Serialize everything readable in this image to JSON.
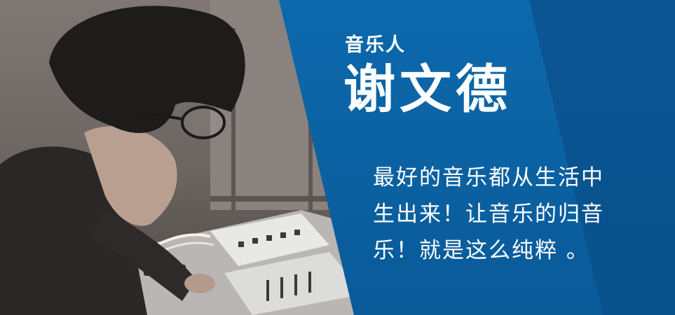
{
  "banner": {
    "label": "音乐人",
    "name": "谢文德",
    "quote_lines": [
      "最好的音乐都从生活中",
      "生出来！让音乐的归音",
      "乐！就是这么纯粹 。"
    ]
  },
  "colors": {
    "panel_blue": "#0c69ad",
    "panel_dark": "#0a4f8a",
    "text": "#ffffff"
  }
}
